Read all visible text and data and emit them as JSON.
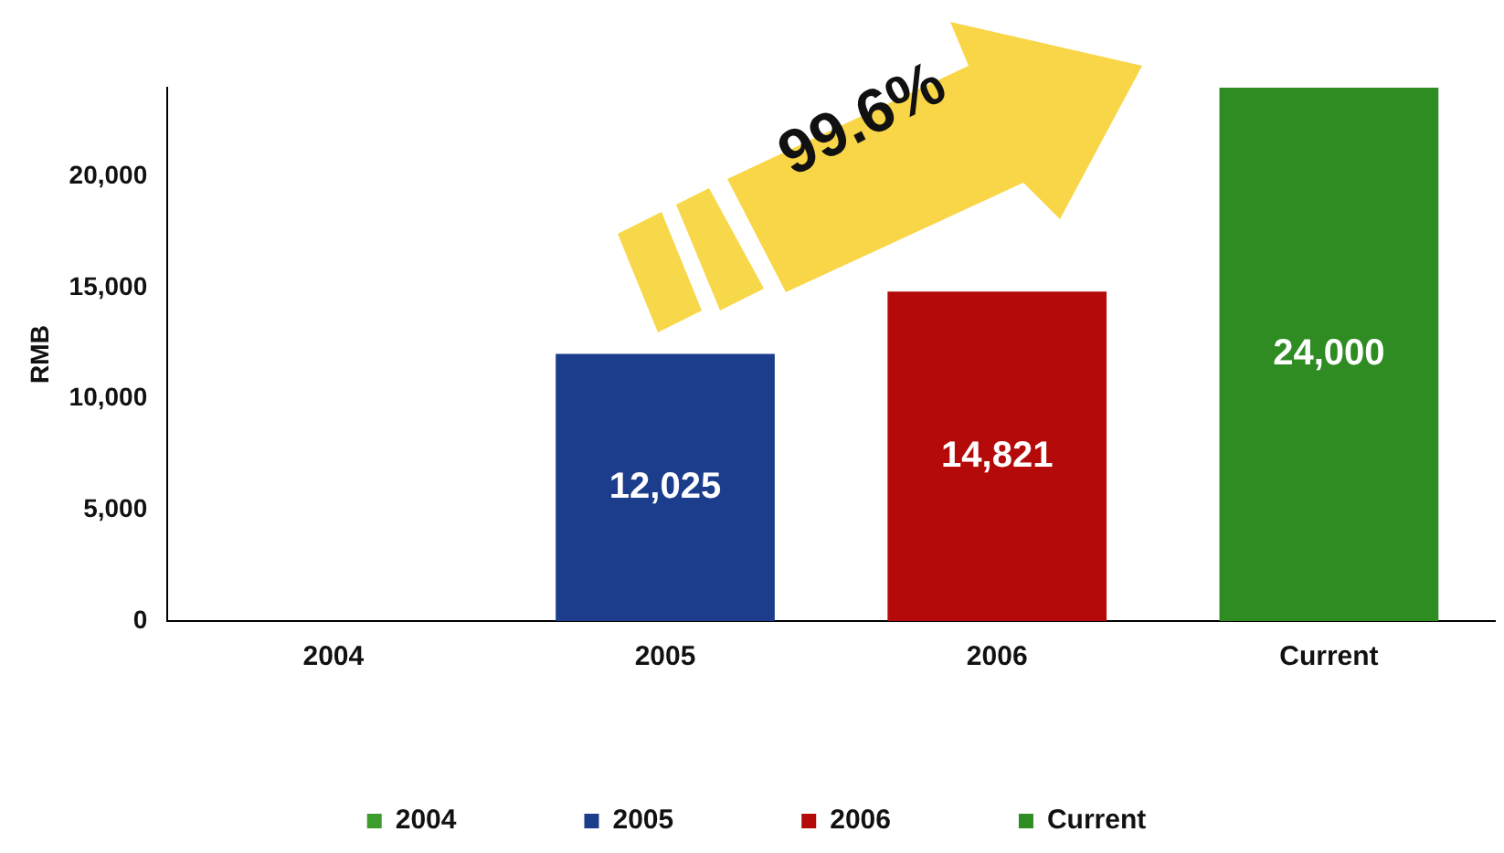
{
  "chart_data": {
    "type": "bar",
    "ylabel": "RMB",
    "stacked": true,
    "categories": [
      "2004",
      "2005",
      "2006",
      "Current"
    ],
    "series": [
      {
        "name": "2004",
        "color": "#3c9c2c",
        "values": [
          null,
          null,
          null,
          null
        ]
      },
      {
        "name": "2005",
        "color": "#1c3c8c",
        "values": [
          null,
          12025,
          null,
          null
        ],
        "value_labels": [
          null,
          "12,025",
          null,
          null
        ]
      },
      {
        "name": "2006",
        "color": "#b40a0a",
        "values": [
          null,
          null,
          14821,
          null
        ],
        "value_labels": [
          null,
          null,
          "14,821",
          null
        ]
      },
      {
        "name": "Current",
        "color": "#2e8c22",
        "values": [
          null,
          null,
          null,
          24000
        ],
        "value_labels": [
          null,
          null,
          null,
          "24,000"
        ]
      }
    ],
    "ylim": [
      0,
      24000
    ],
    "yticks": [
      {
        "value": 0,
        "label": "0"
      },
      {
        "value": 5000,
        "label": "5,000"
      },
      {
        "value": 10000,
        "label": "10,000"
      },
      {
        "value": 15000,
        "label": "15,000"
      },
      {
        "value": 20000,
        "label": "20,000"
      }
    ],
    "grid": false,
    "legend": "bottom",
    "annotations": [
      "99.6%"
    ]
  }
}
